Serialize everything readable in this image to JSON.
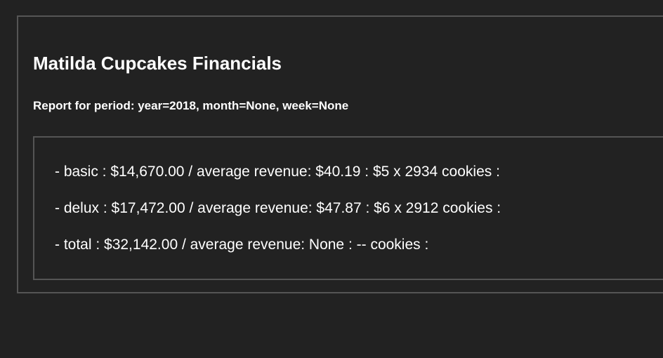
{
  "report": {
    "title": "Matilda Cupcakes Financials",
    "period": "Report for period: year=2018, month=None, week=None",
    "lines": [
      "- basic : $14,670.00 / average revenue: $40.19 : $5 x 2934 cookies :",
      "- delux : $17,472.00 / average revenue: $47.87 : $6 x 2912 cookies :",
      "- total : $32,142.00 / average revenue: None : -- cookies :"
    ]
  },
  "colors": {
    "background": "#222222",
    "border": "#555555",
    "text": "#ffffff"
  }
}
